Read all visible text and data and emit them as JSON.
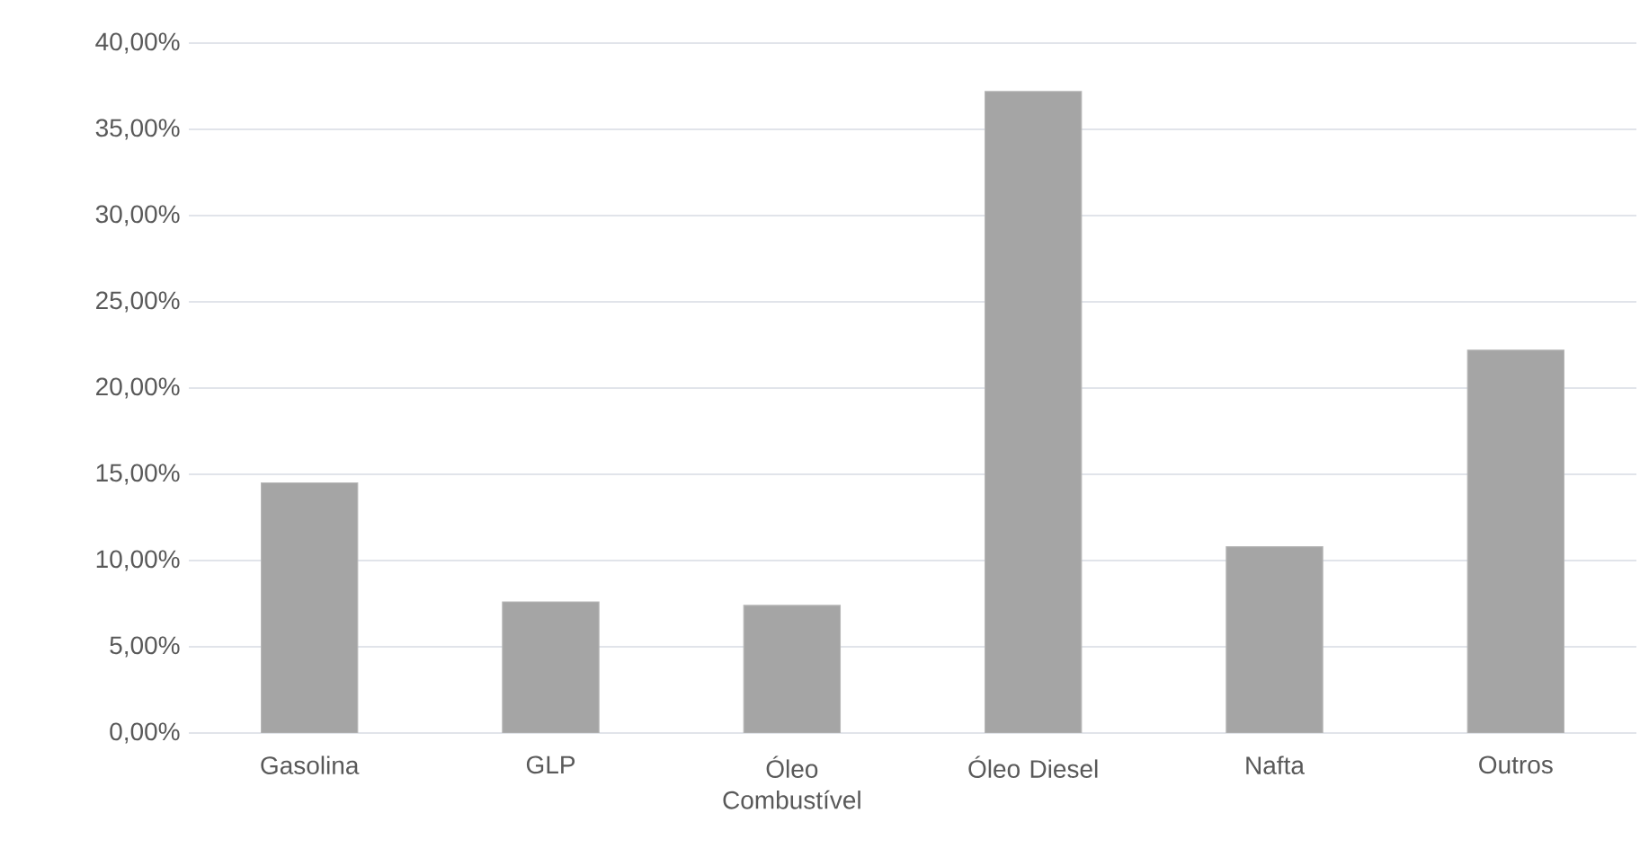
{
  "chart_data": {
    "type": "bar",
    "categories": [
      "Gasolina",
      "GLP",
      "Óleo Combustível",
      "Óleo Diesel",
      "Nafta",
      "Outros"
    ],
    "values": [
      14.5,
      7.6,
      7.4,
      37.2,
      10.8,
      22.2
    ],
    "color": "#a5a5a5",
    "ylim": [
      0,
      40
    ],
    "yticks": [
      {
        "value": 0,
        "label": "0,00%"
      },
      {
        "value": 5,
        "label": "5,00%"
      },
      {
        "value": 10,
        "label": "10,00%"
      },
      {
        "value": 15,
        "label": "15,00%"
      },
      {
        "value": 20,
        "label": "20,00%"
      },
      {
        "value": 25,
        "label": "25,00%"
      },
      {
        "value": 30,
        "label": "30,00%"
      },
      {
        "value": 35,
        "label": "35,00%"
      },
      {
        "value": 40,
        "label": "40,00%"
      }
    ],
    "grid": "y"
  }
}
